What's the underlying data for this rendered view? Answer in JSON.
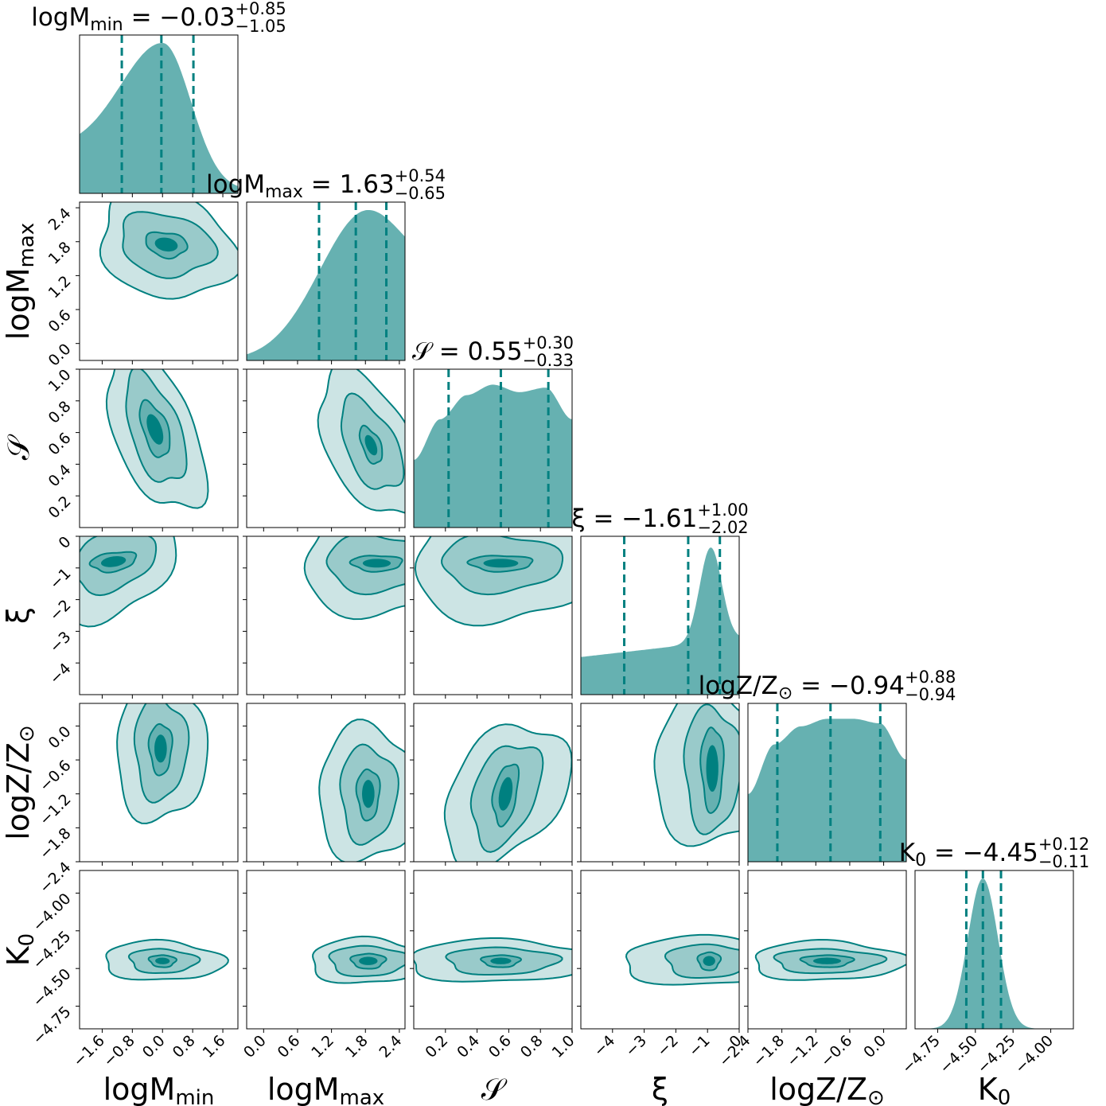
{
  "chart_data": {
    "type": "corner",
    "accent_color": "#008080",
    "fill_light": "#cce4e4",
    "fill_mid": "#99caca",
    "fill_dark": "#66b1b1",
    "parameters": [
      {
        "key": "logMmin",
        "symbol": "logM",
        "sub": "min",
        "median": "−0.03",
        "plus": "+0.85",
        "minus": "−1.05",
        "title_eq": " = −0.03",
        "range": [
          -2.2,
          2.0
        ],
        "ticks": [
          "−1.6",
          "−0.8",
          "0.0",
          "0.8",
          "1.6"
        ],
        "tick_values": [
          -1.6,
          -0.8,
          0.0,
          0.8,
          1.6
        ],
        "quantiles": [
          -1.08,
          -0.03,
          0.82
        ]
      },
      {
        "key": "logMmax",
        "symbol": "logM",
        "sub": "max",
        "median": "1.63",
        "plus": "+0.54",
        "minus": "−0.65",
        "title_eq": " = 1.63",
        "range": [
          -0.3,
          2.5
        ],
        "ticks": [
          "0.0",
          "0.6",
          "1.2",
          "1.8",
          "2.4"
        ],
        "tick_values": [
          0.0,
          0.6,
          1.2,
          1.8,
          2.4
        ],
        "quantiles": [
          0.98,
          1.63,
          2.17
        ]
      },
      {
        "key": "S",
        "symbol": "𝒮",
        "sub": "",
        "median": "0.55",
        "plus": "+0.30",
        "minus": "−0.33",
        "title_eq": " = 0.55",
        "range": [
          0.0,
          1.0
        ],
        "ticks": [
          "0.2",
          "0.4",
          "0.6",
          "0.8",
          "1.0"
        ],
        "tick_values": [
          0.2,
          0.4,
          0.6,
          0.8,
          1.0
        ],
        "quantiles": [
          0.22,
          0.55,
          0.85
        ]
      },
      {
        "key": "xi",
        "symbol": "ξ",
        "sub": "",
        "median": "−1.61",
        "plus": "+1.00",
        "minus": "−2.02",
        "title_eq": " = −1.61",
        "range": [
          -5.0,
          0.0
        ],
        "ticks": [
          "−4",
          "−3",
          "−2",
          "−1",
          "0"
        ],
        "tick_values": [
          -4,
          -3,
          -2,
          -1,
          0
        ],
        "quantiles": [
          -3.63,
          -1.61,
          -0.61
        ]
      },
      {
        "key": "logZ",
        "symbol": "logZ/Z",
        "sub": "⊙",
        "median": "−0.94",
        "plus": "+0.88",
        "minus": "−0.94",
        "title_eq": " = −0.94",
        "range": [
          -2.4,
          0.4
        ],
        "ticks": [
          "−2.4",
          "−1.8",
          "−1.2",
          "−0.6",
          "0.0"
        ],
        "tick_values": [
          -2.4,
          -1.8,
          -1.2,
          -0.6,
          0.0
        ],
        "quantiles": [
          -1.88,
          -0.94,
          -0.06
        ]
      },
      {
        "key": "K0",
        "symbol": "K",
        "sub": "0",
        "median": "−4.45",
        "plus": "+0.12",
        "minus": "−0.11",
        "title_eq": " = −4.45",
        "range": [
          -4.9,
          -3.85
        ],
        "ticks": [
          "−4.75",
          "−4.50",
          "−4.25",
          "−4.00"
        ],
        "tick_values": [
          -4.75,
          -4.5,
          -4.25,
          -4.0
        ],
        "quantiles": [
          -4.56,
          -4.45,
          -4.33
        ]
      }
    ],
    "y_axis_ticks": {
      "logMmax": {
        "ticks": [
          "0.0",
          "0.6",
          "1.2",
          "1.8",
          "2.4"
        ],
        "tick_values": [
          0.0,
          0.6,
          1.2,
          1.8,
          2.4
        ]
      },
      "S": {
        "ticks": [
          "0.2",
          "0.4",
          "0.6",
          "0.8",
          "1.0"
        ],
        "tick_values": [
          0.2,
          0.4,
          0.6,
          0.8,
          1.0
        ]
      },
      "xi": {
        "ticks": [
          "−4",
          "−3",
          "−2",
          "−1",
          "0"
        ],
        "tick_values": [
          -4,
          -3,
          -2,
          -1,
          0
        ]
      },
      "logZ": {
        "ticks": [
          "−2.4",
          "−1.8",
          "−1.2",
          "−0.6",
          "0.0"
        ],
        "tick_values": [
          -2.4,
          -1.8,
          -1.2,
          -0.6,
          0.0
        ]
      },
      "K0": {
        "ticks": [
          "−4.75",
          "−4.50",
          "−4.25",
          "−4.00"
        ],
        "tick_values": [
          -4.75,
          -4.5,
          -4.25,
          -4.0
        ]
      }
    },
    "pairs": [
      {
        "x": "logMmin",
        "y": "logMmax",
        "center": [
          0.1,
          1.75
        ],
        "sx": [
          0.55,
          1.25,
          1.8
        ],
        "sy": [
          0.22,
          0.55,
          0.95
        ],
        "rot": -0.2
      },
      {
        "x": "logMmin",
        "y": "S",
        "center": [
          -0.2,
          0.62
        ],
        "sx": [
          0.4,
          0.8,
          1.3
        ],
        "sy": [
          0.15,
          0.3,
          0.45
        ],
        "rot": -0.6
      },
      {
        "x": "logMmax",
        "y": "S",
        "center": [
          1.9,
          0.52
        ],
        "sx": [
          0.2,
          0.55,
          0.95
        ],
        "sy": [
          0.1,
          0.25,
          0.4
        ],
        "rot": -0.6
      },
      {
        "x": "logMmin",
        "y": "xi",
        "center": [
          -1.3,
          -0.8
        ],
        "sx": [
          0.6,
          1.1,
          1.6
        ],
        "sy": [
          0.3,
          0.9,
          1.8
        ],
        "rot": 0.3
      },
      {
        "x": "logMmax",
        "y": "xi",
        "center": [
          2.0,
          -0.85
        ],
        "sx": [
          0.45,
          0.9,
          1.3
        ],
        "sy": [
          0.25,
          0.9,
          1.7
        ],
        "rot": 0.0
      },
      {
        "x": "S",
        "y": "xi",
        "center": [
          0.55,
          -0.85
        ],
        "sx": [
          0.2,
          0.38,
          0.55
        ],
        "sy": [
          0.25,
          0.9,
          1.9
        ],
        "rot": 0.0
      },
      {
        "x": "logMmin",
        "y": "logZ",
        "center": [
          -0.05,
          -0.4
        ],
        "sx": [
          0.3,
          0.7,
          1.2
        ],
        "sy": [
          0.45,
          0.9,
          1.3
        ],
        "rot": 0.0
      },
      {
        "x": "logMmax",
        "y": "logZ",
        "center": [
          1.85,
          -1.2
        ],
        "sx": [
          0.2,
          0.5,
          0.9
        ],
        "sy": [
          0.45,
          0.85,
          1.2
        ],
        "rot": 0.0
      },
      {
        "x": "S",
        "y": "logZ",
        "center": [
          0.58,
          -1.2
        ],
        "sx": [
          0.08,
          0.22,
          0.4
        ],
        "sy": [
          0.5,
          0.85,
          1.15
        ],
        "rot": 0.4
      },
      {
        "x": "xi",
        "y": "logZ",
        "center": [
          -0.85,
          -0.75
        ],
        "sx": [
          0.35,
          0.9,
          1.9
        ],
        "sy": [
          0.75,
          1.1,
          1.35
        ],
        "rot": 0.0
      },
      {
        "x": "logMmin",
        "y": "K0",
        "center": [
          0.0,
          -4.45
        ],
        "sx": [
          0.35,
          0.9,
          1.6
        ],
        "sy": [
          0.04,
          0.08,
          0.13
        ],
        "rot": -0.05
      },
      {
        "x": "logMmax",
        "y": "K0",
        "center": [
          1.85,
          -4.45
        ],
        "sx": [
          0.3,
          0.7,
          1.05
        ],
        "sy": [
          0.05,
          0.1,
          0.15
        ],
        "rot": 0.0
      },
      {
        "x": "S",
        "y": "K0",
        "center": [
          0.55,
          -4.45
        ],
        "sx": [
          0.12,
          0.35,
          0.6
        ],
        "sy": [
          0.04,
          0.09,
          0.14
        ],
        "rot": 0.0
      },
      {
        "x": "xi",
        "y": "K0",
        "center": [
          -0.95,
          -4.45
        ],
        "sx": [
          0.35,
          1.4,
          2.8
        ],
        "sy": [
          0.06,
          0.11,
          0.16
        ],
        "rot": 0.02
      },
      {
        "x": "logZ",
        "y": "K0",
        "center": [
          -1.0,
          -4.45
        ],
        "sx": [
          0.45,
          0.95,
          1.35
        ],
        "sy": [
          0.04,
          0.08,
          0.13
        ],
        "rot": 0.0
      }
    ],
    "marginals": {
      "logMmin": {
        "shape": "skew",
        "peak": 0.0,
        "left_w": 1.1,
        "right_w": 0.75,
        "left_floor": 0.3,
        "right_floor": 0.02
      },
      "logMmax": {
        "shape": "skew",
        "peak": 1.85,
        "left_w": 0.85,
        "right_w": 0.6,
        "left_floor": 0.0,
        "right_floor": 0.6
      },
      "S": {
        "shape": "flat",
        "levels": [
          0.45,
          0.72,
          0.88,
          0.95,
          0.9,
          0.93,
          0.72
        ]
      },
      "xi": {
        "shape": "peaked",
        "peak": -0.9,
        "width": 0.35,
        "base": 0.25
      },
      "logZ": {
        "shape": "flat",
        "levels": [
          0.45,
          0.78,
          0.9,
          0.95,
          0.95,
          0.92,
          0.68
        ]
      },
      "K0": {
        "shape": "gauss",
        "peak": -4.45,
        "width": 0.1
      }
    }
  }
}
